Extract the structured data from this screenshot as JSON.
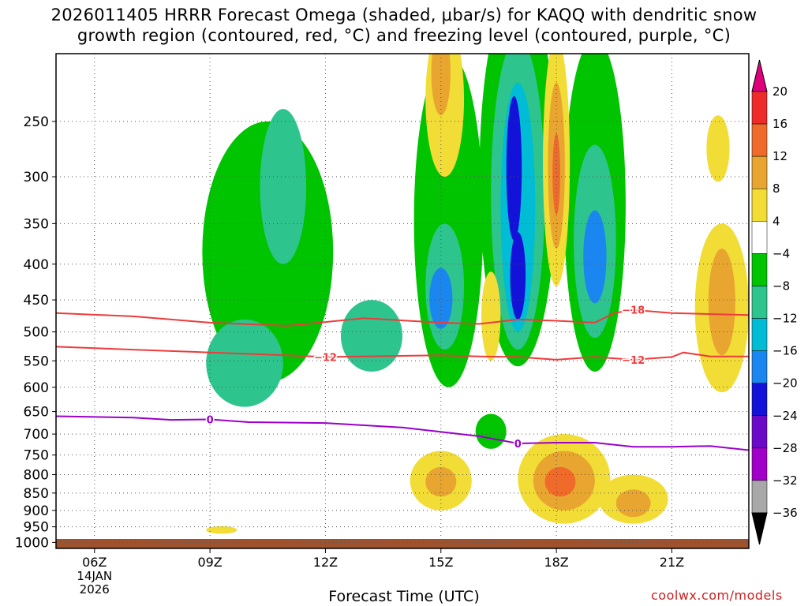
{
  "title": {
    "line1": "2026011405 HRRR Forecast Omega (shaded, μbar/s) for KAQQ with dendritic snow",
    "line2": "growth region (contoured, red, °C) and freezing level (contoured, purple, °C)"
  },
  "xlabel": "Forecast Time (UTC)",
  "credit": "coolwx.com/models",
  "chart_data": {
    "type": "heatmap",
    "title": "2026011405 HRRR Forecast Omega (shaded, μbar/s) for KAQQ with dendritic snow growth region (contoured, red, °C) and freezing level (contoured, purple, °C)",
    "xlabel": "Forecast Time (UTC)",
    "ylabel": "",
    "x_ticks": [
      {
        "label": "06Z",
        "sub": [
          "14JAN",
          "2026"
        ],
        "hour": 6
      },
      {
        "label": "09Z",
        "hour": 9
      },
      {
        "label": "12Z",
        "hour": 12
      },
      {
        "label": "15Z",
        "hour": 15
      },
      {
        "label": "18Z",
        "hour": 18
      },
      {
        "label": "21Z",
        "hour": 21
      }
    ],
    "xlim_hours": [
      5,
      23
    ],
    "y_ticks": [
      250,
      300,
      350,
      400,
      450,
      500,
      550,
      600,
      650,
      700,
      750,
      800,
      850,
      900,
      950,
      1000
    ],
    "ylim_hPa": [
      200,
      1020
    ],
    "y_scale": "log-pressure",
    "colorbar": {
      "labels": [
        "20",
        "16",
        "12",
        "8",
        "4",
        "−4",
        "−8",
        "−12",
        "−16",
        "−20",
        "−24",
        "−28",
        "−32",
        "−36"
      ],
      "bins": [
        {
          "color": "#e0007a"
        },
        {
          "color": "#ee2b2b"
        },
        {
          "color": "#f06a2a"
        },
        {
          "color": "#e8a630"
        },
        {
          "color": "#f2dc36"
        },
        {
          "color": "#ffffff"
        },
        {
          "color": "#00c400"
        },
        {
          "color": "#2ec48e"
        },
        {
          "color": "#00bcd4"
        },
        {
          "color": "#1a86f0"
        },
        {
          "color": "#1212d8"
        },
        {
          "color": "#6a0ac8"
        },
        {
          "color": "#a000c8"
        },
        {
          "color": "#a8a8a8"
        },
        {
          "color": "#000000"
        }
      ]
    },
    "contours": [
      {
        "label": "−18",
        "color": "#ee3b3b",
        "points": [
          [
            5,
            470
          ],
          [
            7,
            475
          ],
          [
            9,
            485
          ],
          [
            11,
            490
          ],
          [
            13,
            478
          ],
          [
            15,
            485
          ],
          [
            16,
            487
          ],
          [
            17,
            480
          ],
          [
            18,
            482
          ],
          [
            19,
            485
          ],
          [
            19.5,
            470
          ],
          [
            20,
            465
          ],
          [
            21,
            470
          ],
          [
            23,
            473
          ]
        ],
        "label_positions": [
          [
            20,
            465
          ]
        ]
      },
      {
        "label": "−12",
        "color": "#ee3b3b",
        "points": [
          [
            5,
            525
          ],
          [
            7,
            530
          ],
          [
            9,
            535
          ],
          [
            11,
            540
          ],
          [
            12,
            543
          ],
          [
            15,
            540
          ],
          [
            16,
            542
          ],
          [
            17,
            543
          ],
          [
            18,
            548
          ],
          [
            19,
            543
          ],
          [
            20,
            548
          ],
          [
            21,
            543
          ],
          [
            21.3,
            535
          ],
          [
            22,
            542
          ],
          [
            23,
            542
          ]
        ],
        "label_positions": [
          [
            12,
            543
          ],
          [
            20,
            548
          ]
        ]
      },
      {
        "label": "0",
        "color": "#9a00c8",
        "points": [
          [
            5,
            660
          ],
          [
            7,
            663
          ],
          [
            8,
            668
          ],
          [
            9,
            667
          ],
          [
            10,
            673
          ],
          [
            12,
            675
          ],
          [
            14,
            685
          ],
          [
            16,
            705
          ],
          [
            17,
            722
          ],
          [
            18,
            720
          ],
          [
            19,
            720
          ],
          [
            20,
            730
          ],
          [
            21,
            730
          ],
          [
            22,
            728
          ],
          [
            23,
            738
          ]
        ],
        "label_positions": [
          [
            9,
            667
          ],
          [
            17,
            722
          ]
        ]
      }
    ],
    "terrain_color": "#a0522d",
    "grid": "dotted",
    "shaded_features": [
      {
        "cx": 10.5,
        "cy": 420,
        "rx": 1.7,
        "ry": 170,
        "value_bin": 6
      },
      {
        "cx": 9.9,
        "cy": 560,
        "rx": 1.0,
        "ry": 80,
        "value_bin": 7
      },
      {
        "cx": 10.9,
        "cy": 320,
        "rx": 0.6,
        "ry": 80,
        "value_bin": 7
      },
      {
        "cx": 13.2,
        "cy": 510,
        "rx": 0.8,
        "ry": 60,
        "value_bin": 7
      },
      {
        "cx": 15.2,
        "cy": 400,
        "rx": 0.9,
        "ry": 200,
        "value_bin": 6
      },
      {
        "cx": 15.1,
        "cy": 440,
        "rx": 0.5,
        "ry": 90,
        "value_bin": 7
      },
      {
        "cx": 15.0,
        "cy": 450,
        "rx": 0.3,
        "ry": 45,
        "value_bin": 9
      },
      {
        "cx": 17.0,
        "cy": 360,
        "rx": 1.0,
        "ry": 200,
        "value_bin": 6
      },
      {
        "cx": 17.0,
        "cy": 360,
        "rx": 0.7,
        "ry": 170,
        "value_bin": 7
      },
      {
        "cx": 17.0,
        "cy": 360,
        "rx": 0.45,
        "ry": 140,
        "value_bin": 8
      },
      {
        "cx": 16.9,
        "cy": 300,
        "rx": 0.2,
        "ry": 70,
        "value_bin": 10
      },
      {
        "cx": 17.0,
        "cy": 420,
        "rx": 0.2,
        "ry": 60,
        "value_bin": 10
      },
      {
        "cx": 19.0,
        "cy": 380,
        "rx": 0.8,
        "ry": 190,
        "value_bin": 6
      },
      {
        "cx": 19.0,
        "cy": 390,
        "rx": 0.55,
        "ry": 120,
        "value_bin": 7
      },
      {
        "cx": 19.0,
        "cy": 395,
        "rx": 0.3,
        "ry": 60,
        "value_bin": 9
      },
      {
        "cx": 18.0,
        "cy": 310,
        "rx": 0.35,
        "ry": 120,
        "value_bin": 4
      },
      {
        "cx": 18.0,
        "cy": 300,
        "rx": 0.22,
        "ry": 80,
        "value_bin": 3
      },
      {
        "cx": 18.0,
        "cy": 300,
        "rx": 0.1,
        "ry": 40,
        "value_bin": 2
      },
      {
        "cx": 15.1,
        "cy": 240,
        "rx": 0.5,
        "ry": 60,
        "value_bin": 4
      },
      {
        "cx": 15.0,
        "cy": 215,
        "rx": 0.25,
        "ry": 30,
        "value_bin": 3
      },
      {
        "cx": 15.0,
        "cy": 820,
        "rx": 0.8,
        "ry": 80,
        "value_bin": 4
      },
      {
        "cx": 15.0,
        "cy": 820,
        "rx": 0.4,
        "ry": 40,
        "value_bin": 3
      },
      {
        "cx": 18.2,
        "cy": 820,
        "rx": 1.2,
        "ry": 120,
        "value_bin": 4
      },
      {
        "cx": 18.2,
        "cy": 820,
        "rx": 0.8,
        "ry": 80,
        "value_bin": 3
      },
      {
        "cx": 18.1,
        "cy": 820,
        "rx": 0.4,
        "ry": 40,
        "value_bin": 2
      },
      {
        "cx": 20.0,
        "cy": 870,
        "rx": 0.9,
        "ry": 70,
        "value_bin": 4
      },
      {
        "cx": 20.0,
        "cy": 880,
        "rx": 0.45,
        "ry": 40,
        "value_bin": 3
      },
      {
        "cx": 22.3,
        "cy": 480,
        "rx": 0.7,
        "ry": 130,
        "value_bin": 4
      },
      {
        "cx": 22.3,
        "cy": 460,
        "rx": 0.35,
        "ry": 80,
        "value_bin": 3
      },
      {
        "cx": 16.3,
        "cy": 480,
        "rx": 0.25,
        "ry": 70,
        "value_bin": 4
      },
      {
        "cx": 16.3,
        "cy": 695,
        "rx": 0.4,
        "ry": 40,
        "value_bin": 6
      },
      {
        "cx": 22.2,
        "cy": 275,
        "rx": 0.3,
        "ry": 30,
        "value_bin": 4
      },
      {
        "cx": 9.3,
        "cy": 960,
        "rx": 0.4,
        "ry": 12,
        "value_bin": 4
      }
    ]
  }
}
